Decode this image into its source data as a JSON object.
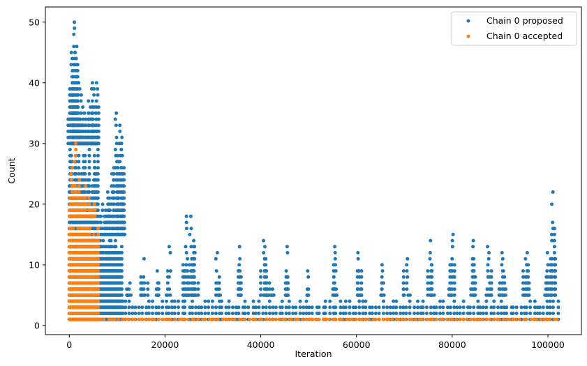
{
  "chart_data": {
    "type": "scatter",
    "title": "",
    "xlabel": "Iteration",
    "ylabel": "Count",
    "xlim": [
      -5000,
      107000
    ],
    "ylim": [
      -1.5,
      52.5
    ],
    "x_ticks": [
      0,
      20000,
      40000,
      60000,
      80000,
      100000
    ],
    "y_ticks": [
      0,
      10,
      20,
      30,
      40,
      50
    ],
    "grid": false,
    "legend_position": "top-right",
    "series": [
      {
        "name": "Chain 0 proposed",
        "color": "#1f77b4",
        "marker": "circle",
        "segments": [
          {
            "x_range": [
              0,
              6000
            ],
            "dense_y_max": 29,
            "peaks": [
              [
                500,
                45
              ],
              [
                800,
                43
              ],
              [
                1100,
                50
              ],
              [
                1400,
                46
              ],
              [
                1700,
                43
              ],
              [
                2000,
                40
              ],
              [
                2300,
                38
              ],
              [
                2700,
                36
              ],
              [
                3000,
                35
              ],
              [
                3300,
                33
              ],
              [
                3700,
                32
              ],
              [
                4000,
                37
              ],
              [
                4300,
                36
              ],
              [
                4700,
                39
              ],
              [
                5000,
                40
              ],
              [
                5400,
                36
              ],
              [
                5800,
                40
              ]
            ]
          },
          {
            "x_range": [
              6000,
              11000
            ],
            "dense_y_max": 14,
            "peaks": [
              [
                7000,
                20
              ],
              [
                8000,
                22
              ],
              [
                9000,
                25
              ],
              [
                9800,
                35
              ],
              [
                10300,
                30
              ],
              [
                10700,
                33
              ],
              [
                11000,
                31
              ]
            ]
          },
          {
            "x_range": [
              11000,
              102500
            ],
            "dense_y_max": 4,
            "peaks": [
              [
                12500,
                7
              ],
              [
                15700,
                11
              ],
              [
                18500,
                9
              ],
              [
                21000,
                13
              ],
              [
                24500,
                18
              ],
              [
                25300,
                18
              ],
              [
                26200,
                13
              ],
              [
                30800,
                12
              ],
              [
                35500,
                13
              ],
              [
                40700,
                14
              ],
              [
                42000,
                7
              ],
              [
                45500,
                13
              ],
              [
                50000,
                9
              ],
              [
                55500,
                13
              ],
              [
                60500,
                12
              ],
              [
                65500,
                10
              ],
              [
                70500,
                11
              ],
              [
                75500,
                14
              ],
              [
                80000,
                15
              ],
              [
                84500,
                14
              ],
              [
                87500,
                13
              ],
              [
                90500,
                12
              ],
              [
                95500,
                12
              ],
              [
                100000,
                12
              ],
              [
                100900,
                22
              ]
            ]
          }
        ]
      },
      {
        "name": "Chain 0 accepted",
        "color": "#ff7f0e",
        "marker": "circle",
        "segments": [
          {
            "x_range": [
              0,
              6000
            ],
            "dense_y_max": 17,
            "peaks": [
              [
                400,
                26
              ],
              [
                800,
                23
              ],
              [
                1200,
                30
              ],
              [
                2000,
                24
              ],
              [
                2600,
                21
              ],
              [
                3400,
                23
              ],
              [
                4000,
                21
              ],
              [
                5300,
                20
              ]
            ]
          },
          {
            "x_range": [
              6000,
              102500
            ],
            "dense_y_max": 1,
            "peaks": []
          }
        ]
      }
    ]
  }
}
